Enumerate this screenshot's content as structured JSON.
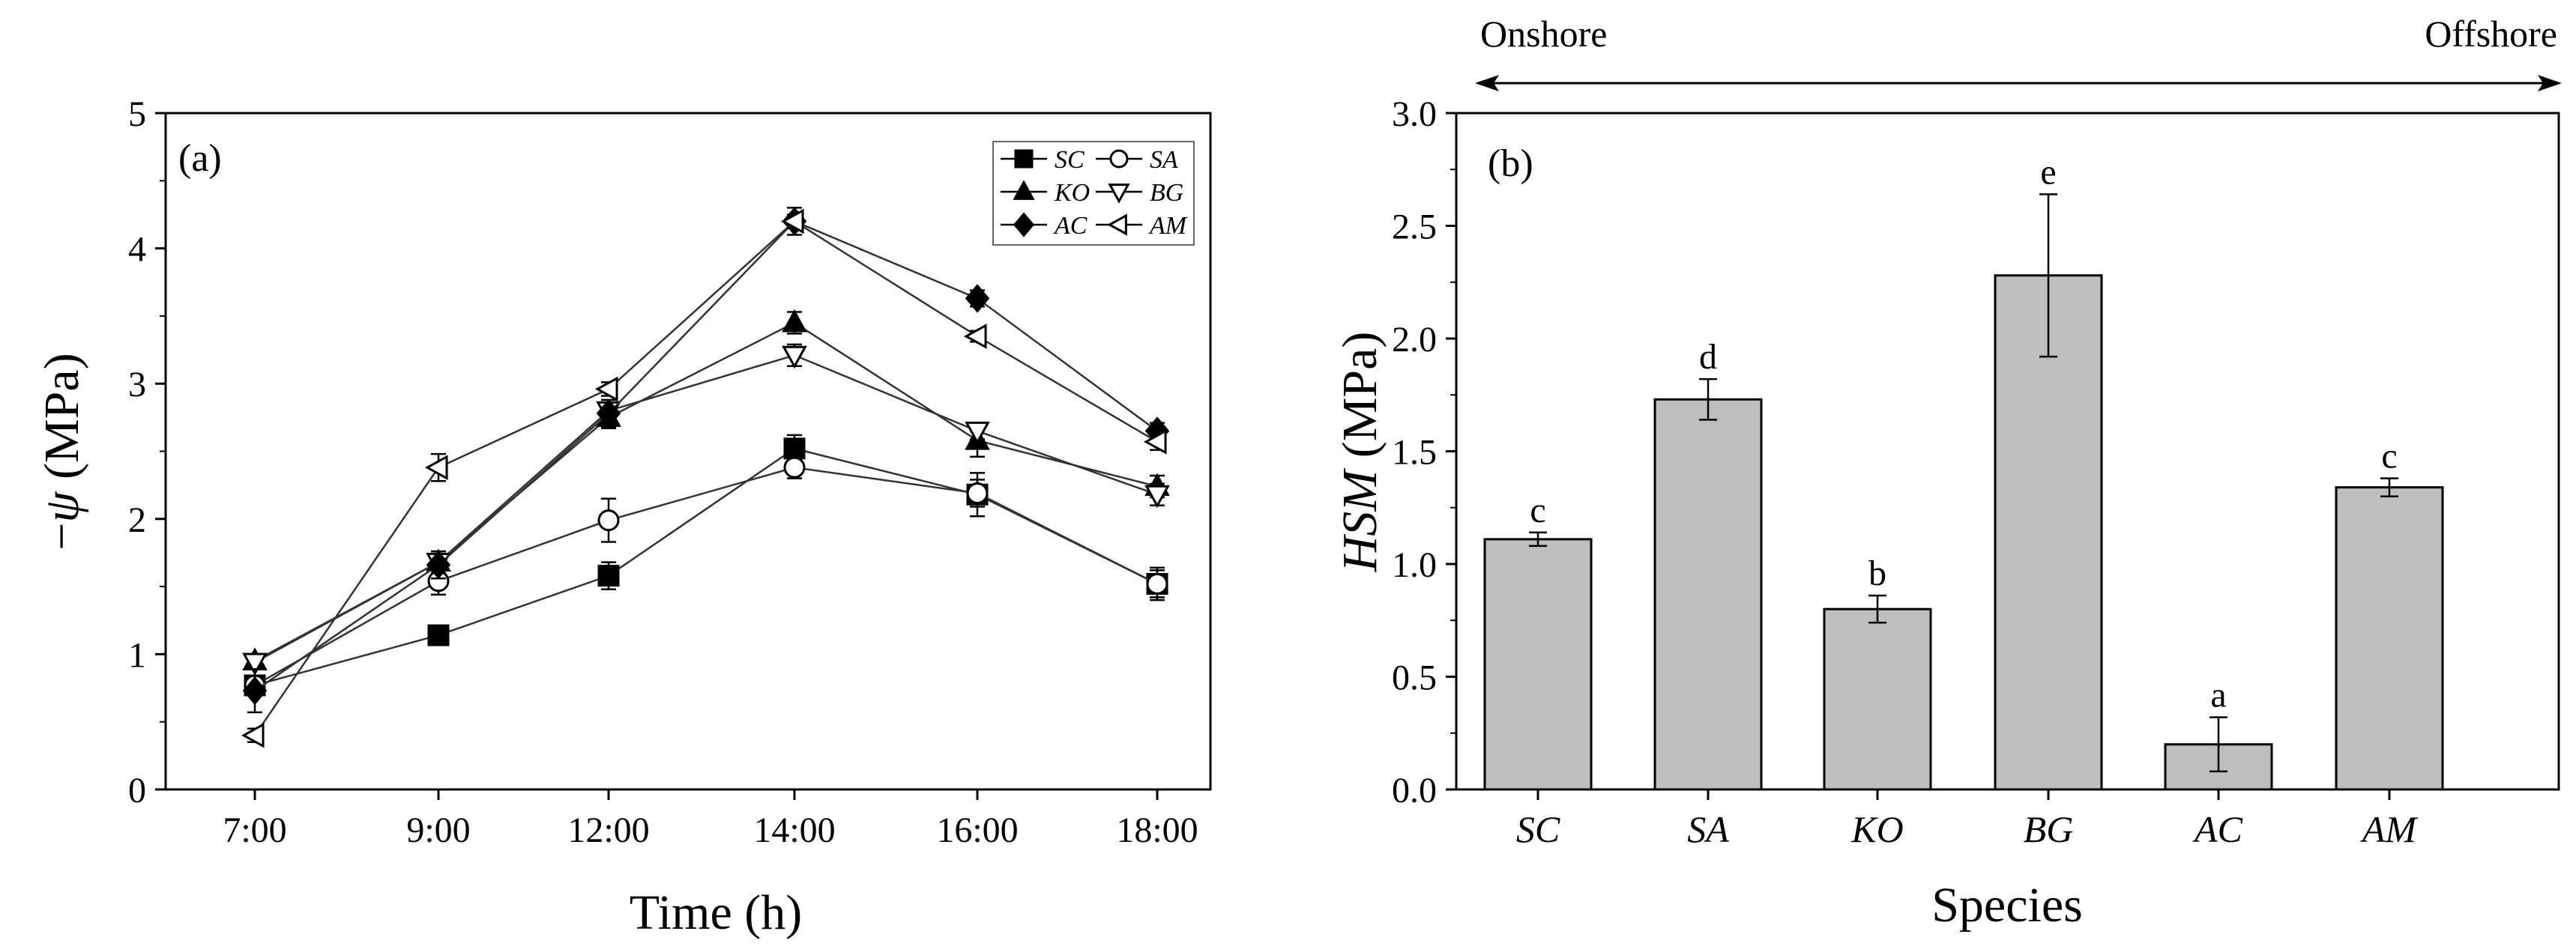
{
  "chart_data": [
    {
      "type": "line",
      "panel_label": "(a)",
      "xlabel": "Time (h)",
      "ylabel_prefix": "−",
      "ylabel_symbol": "ψ",
      "ylabel_unit": " (MPa)",
      "categories": [
        "7:00",
        "9:00",
        "12:00",
        "14:00",
        "16:00",
        "18:00"
      ],
      "ylim": [
        0,
        5
      ],
      "yticks": [
        0,
        1,
        2,
        3,
        4,
        5
      ],
      "series": [
        {
          "name": "SC",
          "marker": "square",
          "filled": true,
          "values": [
            0.77,
            1.14,
            1.58,
            2.52,
            2.18,
            1.52
          ],
          "errors": [
            0.05,
            0.05,
            0.1,
            0.1,
            0.16,
            0.1
          ]
        },
        {
          "name": "SA",
          "marker": "circle",
          "filled": false,
          "values": [
            0.77,
            1.54,
            1.99,
            2.38,
            2.19,
            1.52
          ],
          "errors": [
            0.05,
            0.1,
            0.16,
            0.08,
            0.1,
            0.12
          ]
        },
        {
          "name": "KO",
          "marker": "triangle-up",
          "filled": true,
          "values": [
            0.95,
            1.68,
            2.75,
            3.45,
            2.58,
            2.24
          ],
          "errors": [
            0.05,
            0.08,
            0.08,
            0.08,
            0.12,
            0.08
          ]
        },
        {
          "name": "BG",
          "marker": "triangle-down",
          "filled": false,
          "values": [
            0.94,
            1.68,
            2.8,
            3.21,
            2.65,
            2.18
          ],
          "errors": [
            0.05,
            0.06,
            0.06,
            0.08,
            0.06,
            0.08
          ]
        },
        {
          "name": "AC",
          "marker": "diamond",
          "filled": true,
          "values": [
            0.73,
            1.66,
            2.78,
            4.2,
            3.63,
            2.65
          ],
          "errors": [
            0.16,
            0.1,
            0.1,
            0.1,
            0.06,
            0.06
          ]
        },
        {
          "name": "AM",
          "marker": "triangle-left",
          "filled": false,
          "values": [
            0.4,
            2.38,
            2.96,
            4.2,
            3.35,
            2.57
          ],
          "errors": [
            0.05,
            0.1,
            0.05,
            0.05,
            0.04,
            0.06
          ]
        }
      ],
      "legend": "top-right"
    },
    {
      "type": "bar",
      "panel_label": "(b)",
      "xlabel": "Species",
      "ylabel_italic": "HSM",
      "ylabel_unit": " (MPa)",
      "categories": [
        "SC",
        "SA",
        "KO",
        "BG",
        "AC",
        "AM"
      ],
      "values": [
        1.11,
        1.73,
        0.8,
        2.28,
        0.2,
        1.34
      ],
      "errors": [
        0.03,
        0.09,
        0.06,
        0.36,
        0.12,
        0.04
      ],
      "letters": [
        "c",
        "d",
        "b",
        "e",
        "a",
        "c"
      ],
      "ylim": [
        0,
        3
      ],
      "yticks": [
        "0.0",
        "0.5",
        "1.0",
        "1.5",
        "2.0",
        "2.5",
        "3.0"
      ],
      "bar_color": "#bebebe",
      "gradient": {
        "left_label": "Onshore",
        "right_label": "Offshore"
      }
    }
  ]
}
